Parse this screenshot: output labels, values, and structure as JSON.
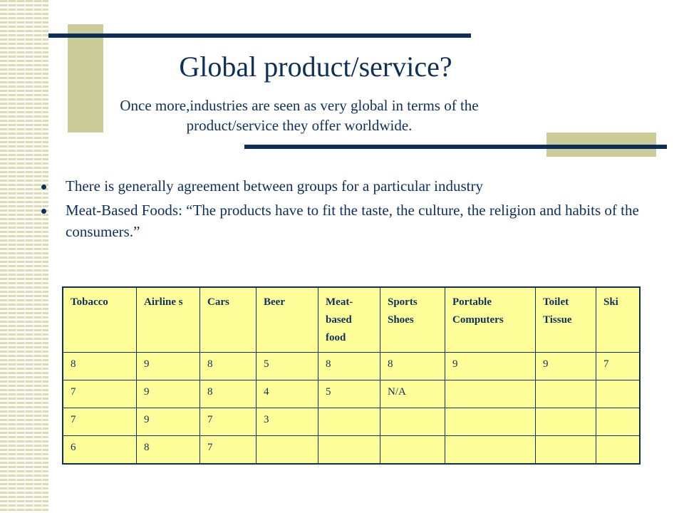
{
  "slide": {
    "title": "Global product/service?",
    "subtitle_line1": "Once more,industries are seen as very global in terms of the",
    "subtitle_line2": "product/service they offer worldwide.",
    "bullets": [
      "There is generally agreement between groups for a particular industry",
      "Meat-Based Foods: “The products have to fit the taste, the culture, the religion and habits of the consumers.”"
    ]
  },
  "table": {
    "headers": [
      "Tobacco",
      "Airline s",
      "Cars",
      "Beer",
      "Meat-based food",
      "Sports Shoes",
      "Portable Computers",
      "Toilet Tissue",
      "Ski"
    ],
    "rows": [
      [
        "8",
        "9",
        "8",
        "5",
        "8",
        "8",
        "9",
        "9",
        "7"
      ],
      [
        "7",
        "9",
        "8",
        "4",
        "5",
        "N/A",
        "",
        "",
        ""
      ],
      [
        "7",
        "9",
        "7",
        "3",
        "",
        "",
        "",
        "",
        ""
      ],
      [
        "6",
        "8",
        "7",
        "",
        "",
        "",
        "",
        "",
        ""
      ]
    ]
  },
  "colors": {
    "text": "#0d2f5c",
    "accent_box": "#cccc99",
    "table_fill": "#ffff99"
  }
}
